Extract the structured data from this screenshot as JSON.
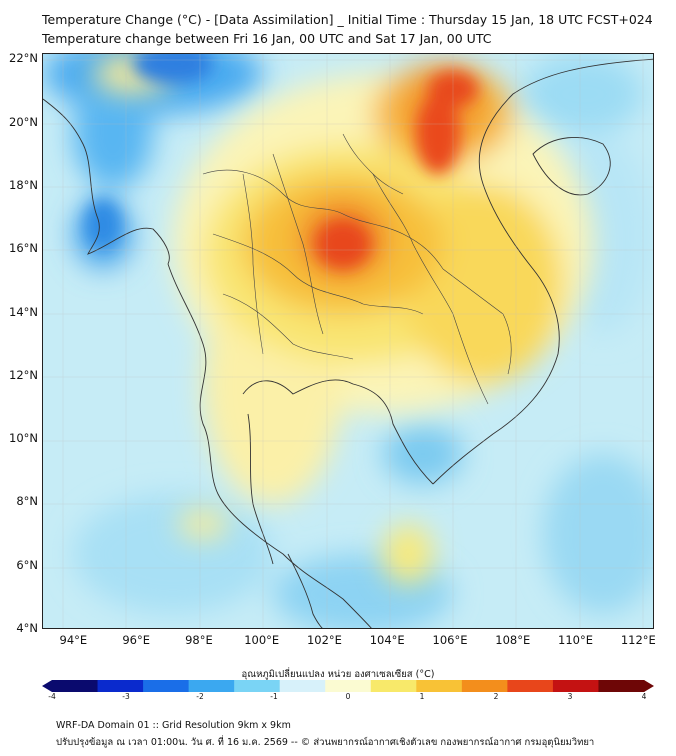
{
  "title_line1": "Temperature Change (°C) - [Data Assimilation] _ Initial Time : Thursday 15 Jan, 18 UTC FCST+024",
  "title_line2": "Temperature change between Fri 16 Jan, 00 UTC and Sat 17 Jan, 00 UTC",
  "map": {
    "lat_labels": [
      "22°N",
      "20°N",
      "18°N",
      "16°N",
      "14°N",
      "12°N",
      "10°N",
      "8°N",
      "6°N",
      "4°N"
    ],
    "lon_labels": [
      "94°E",
      "96°E",
      "98°E",
      "100°E",
      "102°E",
      "104°E",
      "106°E",
      "108°E",
      "110°E",
      "112°E"
    ],
    "lat_range": [
      4,
      22.2
    ],
    "lon_range": [
      93,
      112.5
    ]
  },
  "colorbar": {
    "title": "อุณหภูมิเปลี่ยนแปลง หน่วย องศาเซลเซียส (°C)",
    "tick_labels": [
      "-4",
      "-3",
      "-2",
      "-1",
      "0",
      "1",
      "2",
      "3",
      "4"
    ],
    "range": [
      -4,
      4
    ],
    "colors": [
      "#0a0a6e",
      "#0a2acd",
      "#1a6ee8",
      "#3ba8f0",
      "#7ad4f5",
      "#d7f1fa",
      "#fbfbd2",
      "#f8e96a",
      "#f8c236",
      "#f38e1c",
      "#e8461b",
      "#c41212",
      "#6e0606"
    ]
  },
  "footer_line1": "WRF-DA Domain 01 :: Grid Resolution 9km x 9km",
  "footer_line2": "ปรับปรุงข้อมูล ณ เวลา 01:00น. วัน ศ. ที่ 16 ม.ค. 2569 -- © ส่วนพยากรณ์อากาศเชิงตัวเลข กองพยากรณ์อากาศ กรมอุตุนิยมวิทยา"
}
